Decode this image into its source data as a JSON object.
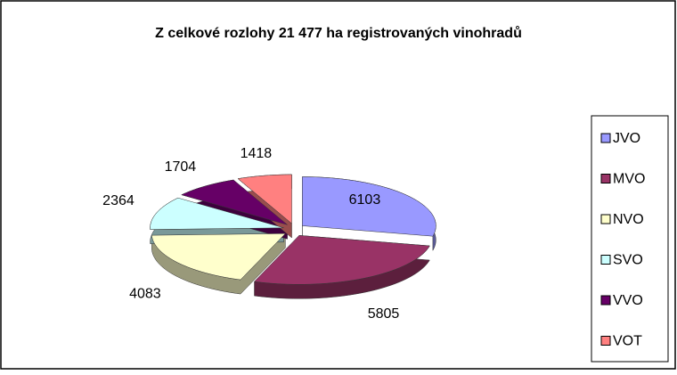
{
  "chart_data": {
    "type": "pie3d",
    "title": "Z celkové rozlohy 21 477 ha registrovaných vinohradů",
    "categories": [
      "JVO",
      "MVO",
      "NVO",
      "SVO",
      "VVO",
      "VOT"
    ],
    "values": [
      6103,
      5805,
      4083,
      2364,
      1704,
      1418
    ],
    "colors": [
      "#9999ff",
      "#993366",
      "#ffffcc",
      "#ccffff",
      "#660066",
      "#ff8080"
    ],
    "legend": "right"
  }
}
